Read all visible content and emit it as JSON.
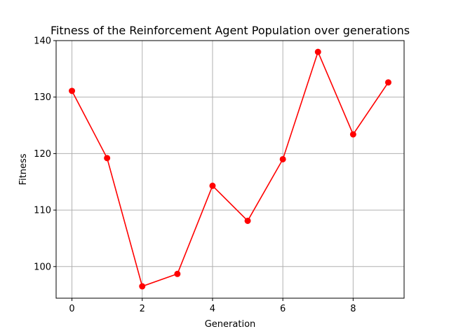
{
  "chart_data": {
    "type": "line",
    "title": "Fitness of the Reinforcement Agent Population over generations",
    "xlabel": "Generation",
    "ylabel": "Fitness",
    "x": [
      0,
      1,
      2,
      3,
      4,
      5,
      6,
      7,
      8,
      9
    ],
    "series": [
      {
        "values": [
          131.1,
          119.2,
          96.5,
          98.7,
          114.3,
          108.1,
          119.0,
          138.0,
          123.4,
          132.6
        ],
        "color": "#ff0000",
        "marker": "circle"
      }
    ],
    "xlim": [
      -0.45,
      9.45
    ],
    "ylim": [
      94.4,
      140
    ],
    "xticks": [
      0,
      2,
      4,
      6,
      8
    ],
    "yticks": [
      100,
      110,
      120,
      130,
      140
    ],
    "grid": true,
    "legend": "none"
  }
}
